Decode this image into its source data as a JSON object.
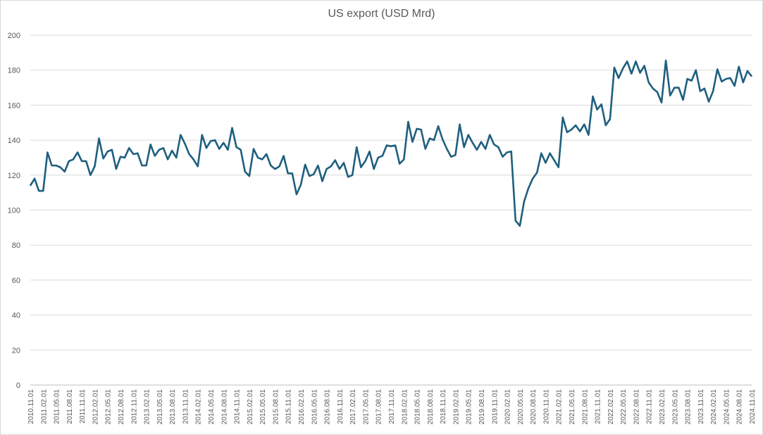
{
  "chart_data": {
    "type": "line",
    "title": "US export (USD Mrd)",
    "xlabel": "",
    "ylabel": "",
    "ylim": [
      0,
      200
    ],
    "yticks": [
      0,
      20,
      40,
      60,
      80,
      100,
      120,
      140,
      160,
      180,
      200
    ],
    "grid": true,
    "legend": "none",
    "line_color": "#1f5f7f",
    "x_start": "2010.11.01",
    "x_end": "2024.11.01",
    "x_tick_labels": [
      "2010.11.01",
      "2011.02.01",
      "2011.05.01",
      "2011.08.01",
      "2011.11.01",
      "2012.02.01",
      "2012.05.01",
      "2012.08.01",
      "2012.11.01",
      "2013.02.01",
      "2013.05.01",
      "2013.08.01",
      "2013.11.01",
      "2014.02.01",
      "2014.05.01",
      "2014.08.01",
      "2014.11.01",
      "2015.02.01",
      "2015.05.01",
      "2015.08.01",
      "2015.11.01",
      "2016.02.01",
      "2016.05.01",
      "2016.08.01",
      "2016.11.01",
      "2017.02.01",
      "2017.05.01",
      "2017.08.01",
      "2017.11.01",
      "2018.02.01",
      "2018.05.01",
      "2018.08.01",
      "2018.11.01",
      "2019.02.01",
      "2019.05.01",
      "2019.08.01",
      "2019.11.01",
      "2020.02.01",
      "2020.05.01",
      "2020.08.01",
      "2020.11.01",
      "2021.02.01",
      "2021.05.01",
      "2021.08.01",
      "2021.11.01",
      "2022.02.01",
      "2022.05.01",
      "2022.08.01",
      "2022.11.01",
      "2023.02.01",
      "2023.05.01",
      "2023.08.01",
      "2023.11.01",
      "2024.02.01",
      "2024.05.01",
      "2024.08.01",
      "2024.11.01"
    ],
    "series": [
      {
        "values": [
          114,
          118,
          111,
          111,
          133,
          125.5,
          125.5,
          124.5,
          122,
          128,
          129,
          133,
          128,
          128,
          120,
          125,
          141,
          129.5,
          133.5,
          134.5,
          123.5,
          130.5,
          130,
          135.5,
          132,
          132.5,
          125.5,
          125.5,
          137.5,
          131,
          134.5,
          135.5,
          129,
          134,
          130,
          143,
          138,
          132,
          129,
          125,
          143,
          135.5,
          139.5,
          140,
          135,
          138.5,
          134.5,
          147,
          136,
          134.5,
          122,
          119.5,
          135,
          130,
          129,
          132,
          125.5,
          123.5,
          125,
          131,
          121,
          121,
          109,
          114.5,
          126,
          119.5,
          120.5,
          125.5,
          116.5,
          123.5,
          125,
          128.5,
          123.5,
          127,
          119,
          120,
          136,
          124.5,
          128,
          133.5,
          123.5,
          130,
          131,
          137,
          136.5,
          137,
          126.5,
          129,
          150.5,
          139,
          146.5,
          146,
          135,
          141,
          140,
          148,
          140.5,
          135,
          130.5,
          131.5,
          149,
          136,
          143,
          138.5,
          134.5,
          139,
          135,
          143,
          137.5,
          136,
          130.5,
          133,
          133.5,
          94,
          91,
          105,
          112.5,
          118,
          121.5,
          132.5,
          127,
          132.5,
          128.5,
          124.5,
          153,
          144.5,
          146,
          148.5,
          145,
          149,
          143,
          165,
          157.5,
          160.5,
          148.5,
          152,
          181.5,
          175.5,
          181,
          185,
          178,
          185,
          178.5,
          182.5,
          173,
          169.5,
          167.5,
          161.5,
          185.5,
          165.5,
          170,
          170,
          163,
          175,
          174,
          180,
          168,
          169.5,
          162,
          168,
          180.5,
          173.5,
          175,
          175.5,
          171,
          182,
          173,
          179.5,
          176.5
        ]
      }
    ]
  }
}
